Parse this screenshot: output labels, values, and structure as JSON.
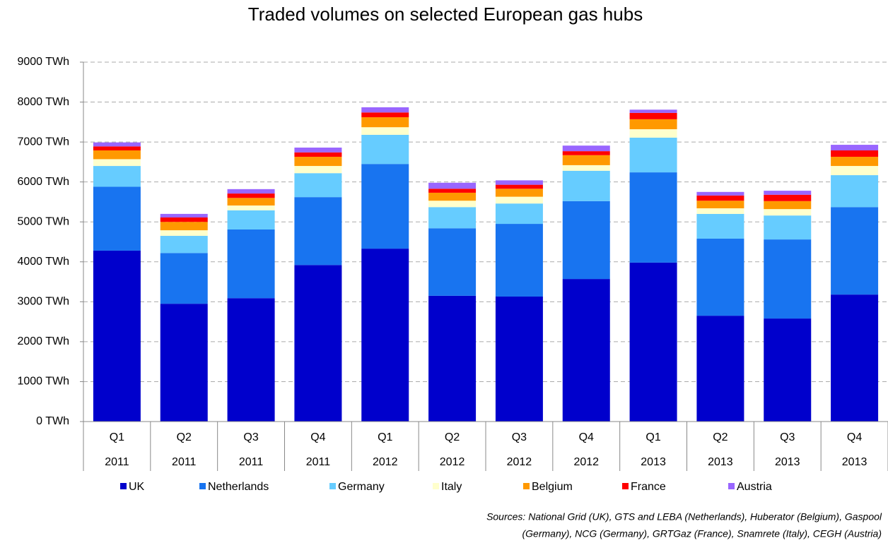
{
  "chart_data": {
    "type": "stacked_bar",
    "title": "Traded volumes on selected European gas hubs",
    "categories": [
      [
        "Q1",
        "2011"
      ],
      [
        "Q2",
        "2011"
      ],
      [
        "Q3",
        "2011"
      ],
      [
        "Q4",
        "2011"
      ],
      [
        "Q1",
        "2012"
      ],
      [
        "Q2",
        "2012"
      ],
      [
        "Q3",
        "2012"
      ],
      [
        "Q4",
        "2012"
      ],
      [
        "Q1",
        "2013"
      ],
      [
        "Q2",
        "2013"
      ],
      [
        "Q3",
        "2013"
      ],
      [
        "Q4",
        "2013"
      ]
    ],
    "series": [
      {
        "name": "UK",
        "color": "#0000cc",
        "values": [
          4280,
          2950,
          3090,
          3920,
          4330,
          3150,
          3130,
          3570,
          3980,
          2650,
          2580,
          3180
        ]
      },
      {
        "name": "Netherlands",
        "color": "#1874f0",
        "values": [
          1600,
          1270,
          1720,
          1700,
          2120,
          1690,
          1820,
          1950,
          2260,
          1930,
          1980,
          2190
        ]
      },
      {
        "name": "Germany",
        "color": "#66ccff",
        "values": [
          520,
          430,
          480,
          600,
          730,
          530,
          510,
          760,
          870,
          620,
          600,
          800
        ]
      },
      {
        "name": "Italy",
        "color": "#ffffcc",
        "values": [
          170,
          140,
          120,
          180,
          190,
          160,
          170,
          140,
          210,
          140,
          160,
          230
        ]
      },
      {
        "name": "Belgium",
        "color": "#ff9900",
        "values": [
          220,
          210,
          190,
          230,
          250,
          200,
          200,
          250,
          250,
          190,
          200,
          230
        ]
      },
      {
        "name": "France",
        "color": "#ff0000",
        "values": [
          100,
          110,
          110,
          110,
          120,
          100,
          100,
          100,
          160,
          130,
          160,
          160
        ]
      },
      {
        "name": "Austria",
        "color": "#9966ff",
        "values": [
          100,
          90,
          110,
          120,
          130,
          150,
          110,
          140,
          80,
          90,
          100,
          140
        ]
      }
    ],
    "ylim": [
      0,
      9000
    ],
    "yticks": [
      {
        "value": 0,
        "label": "0 TWh"
      },
      {
        "value": 1000,
        "label": "1000 TWh"
      },
      {
        "value": 2000,
        "label": "2000 TWh"
      },
      {
        "value": 3000,
        "label": "3000 TWh"
      },
      {
        "value": 4000,
        "label": "4000 TWh"
      },
      {
        "value": 5000,
        "label": "5000 TWh"
      },
      {
        "value": 6000,
        "label": "6000 TWh"
      },
      {
        "value": 7000,
        "label": "7000 TWh"
      },
      {
        "value": 8000,
        "label": "8000 TWh"
      },
      {
        "value": 9000,
        "label": "9000 TWh"
      }
    ],
    "grid": true,
    "legend": "bottom",
    "source": [
      "Sources: National Grid (UK), GTS and LEBA (Netherlands), Huberator (Belgium), Gaspool",
      "(Germany), NCG (Germany), GRTGaz (France), Snamrete (Italy), CEGH (Austria)"
    ]
  }
}
